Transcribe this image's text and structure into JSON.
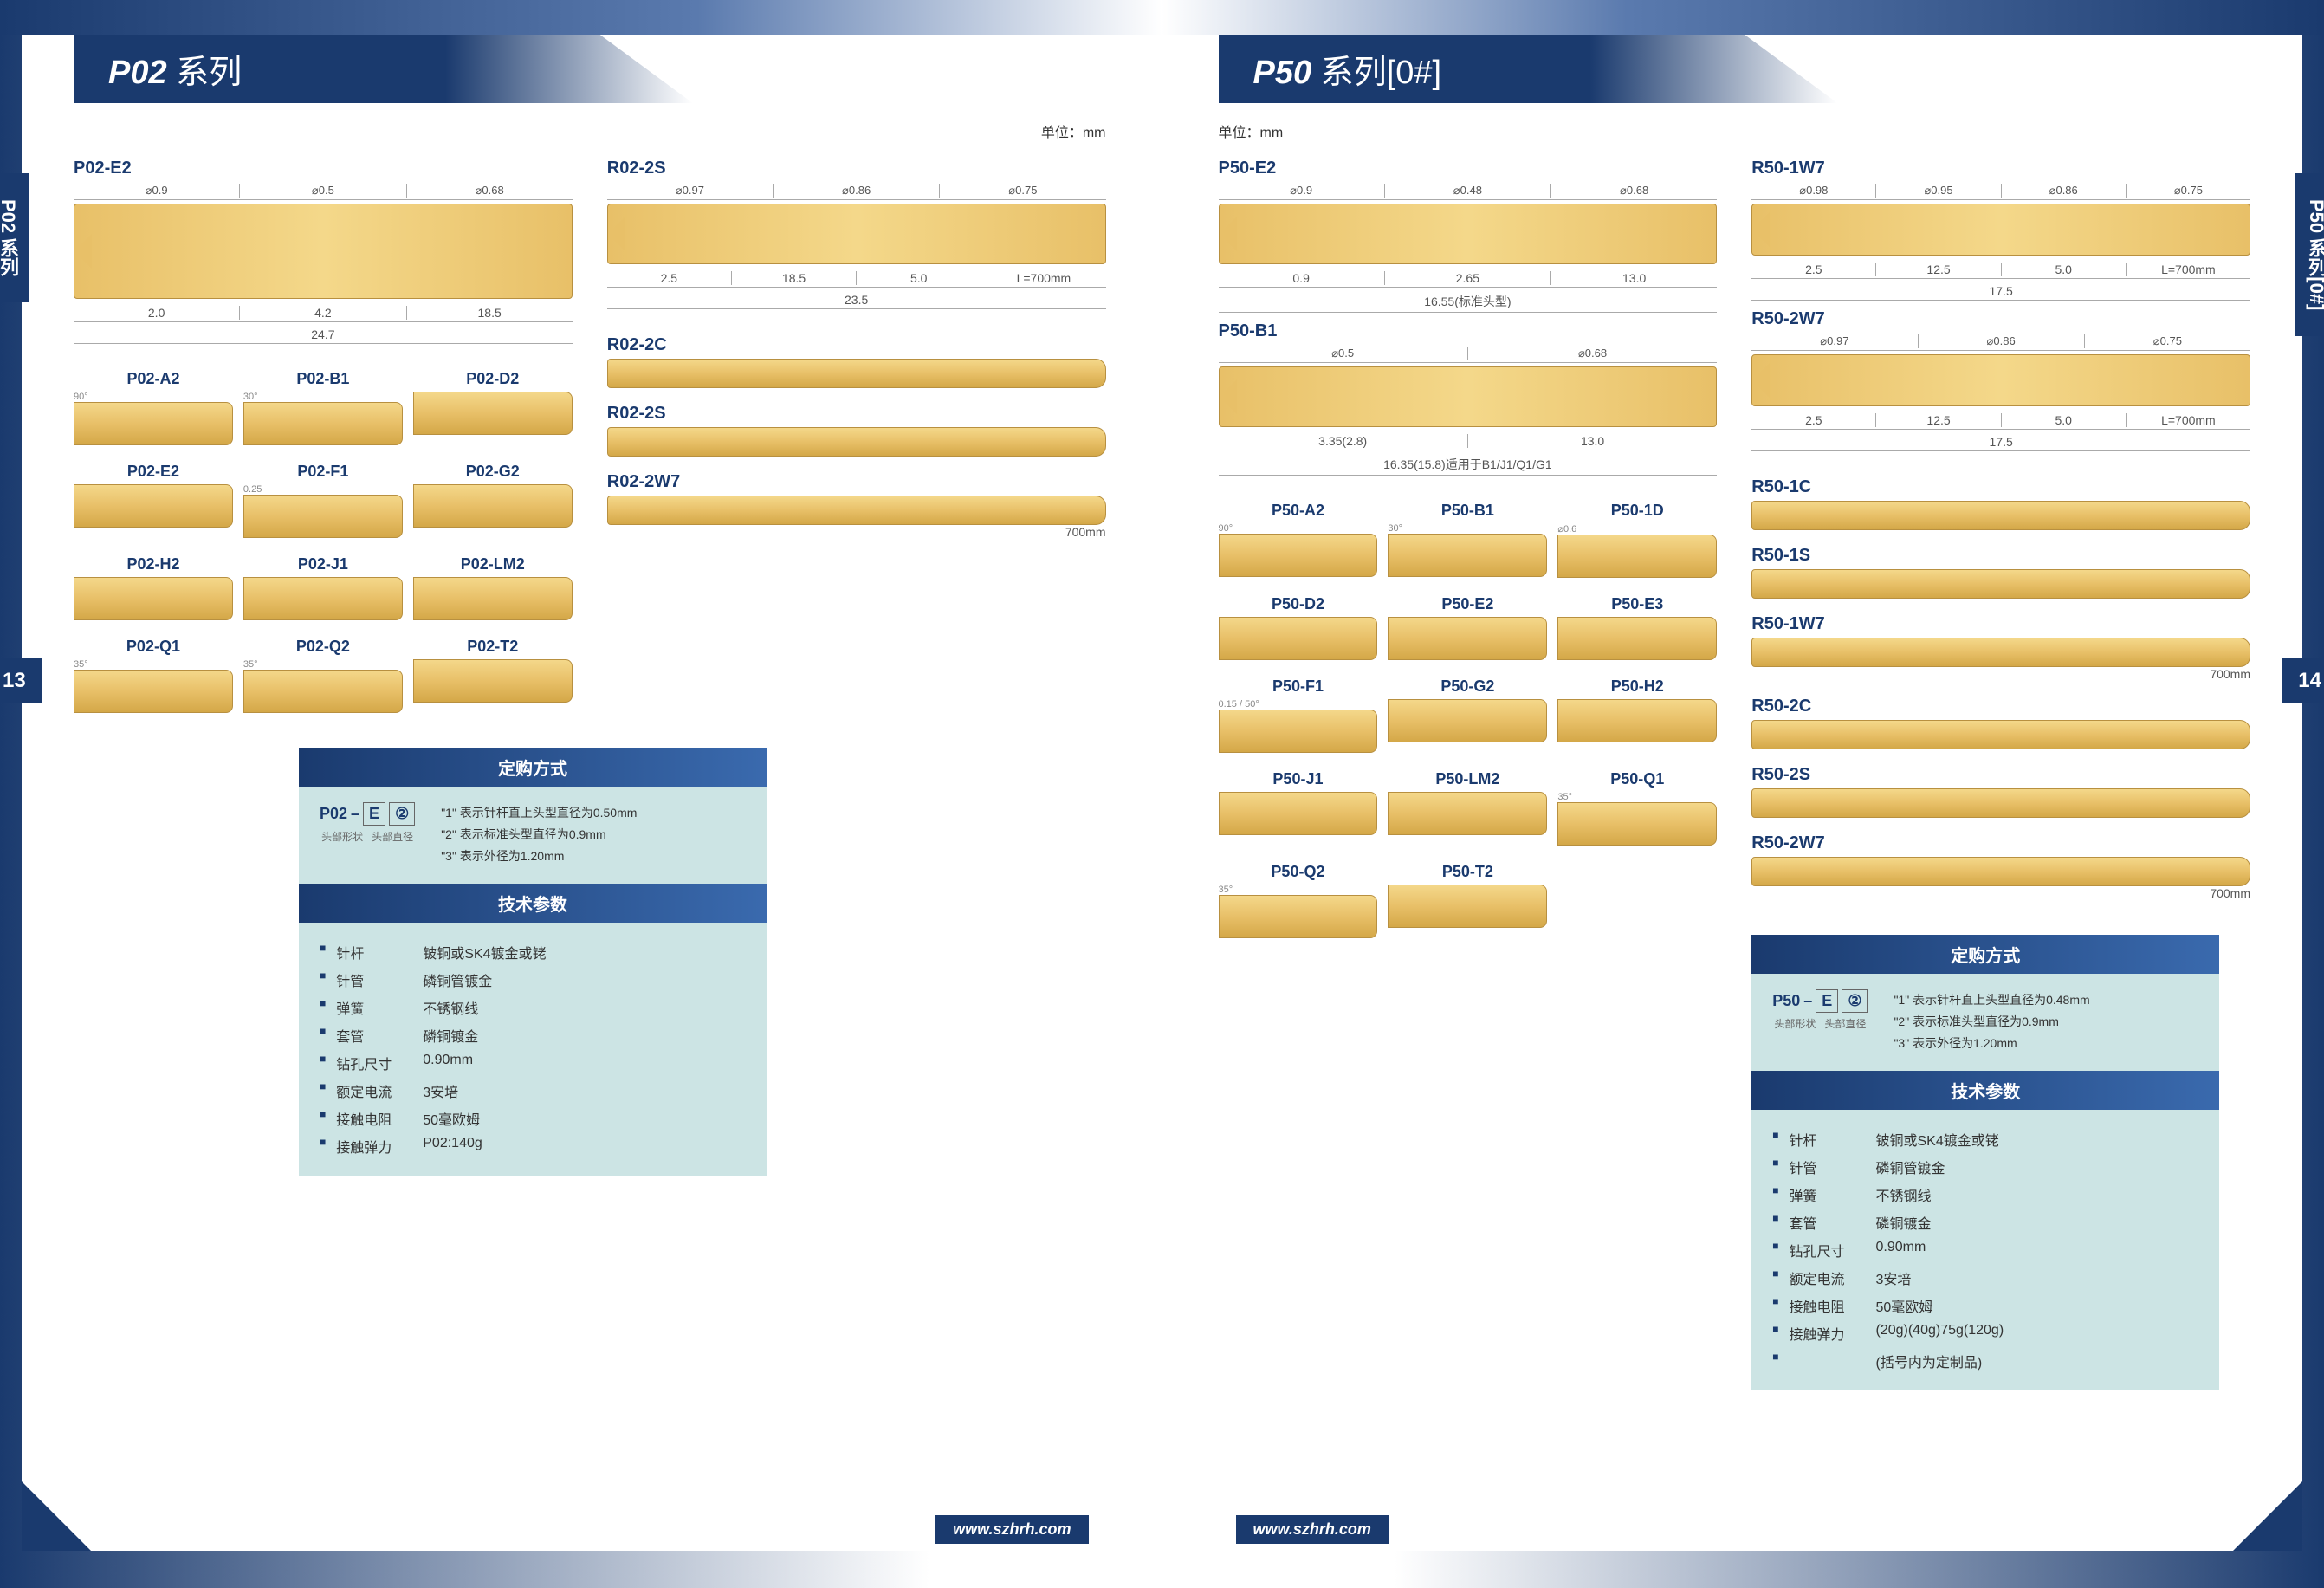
{
  "footer_url": "www.szhrh.com",
  "unit_text": "单位：mm",
  "left": {
    "series_title_main": "P02",
    "series_title_sub": "系列",
    "tab_label": "P02 系列",
    "page_number": "13",
    "main_probe": {
      "label": "P02-E2",
      "diameters": [
        "⌀0.9",
        "⌀0.5",
        "⌀0.68"
      ],
      "lengths": [
        "2.0",
        "4.2",
        "18.5"
      ],
      "total": "24.7"
    },
    "receptacle_main": {
      "label": "R02-2S",
      "diameters": [
        "⌀0.97",
        "⌀0.86",
        "⌀0.75"
      ],
      "lengths": [
        "2.5",
        "18.5",
        "5.0"
      ],
      "total": "23.5",
      "tail": "L=700mm"
    },
    "tips": [
      "P02-A2",
      "P02-B1",
      "P02-D2",
      "P02-E2",
      "P02-F1",
      "P02-G2",
      "P02-H2",
      "P02-J1",
      "P02-LM2",
      "P02-Q1",
      "P02-Q2",
      "P02-T2"
    ],
    "tip_angles": {
      "P02-A2": "90°",
      "P02-B1": "30°",
      "P02-F1": "0.25",
      "P02-Q1": "35°",
      "P02-Q2": "35°"
    },
    "receptacles": [
      {
        "label": "R02-2C",
        "tail": ""
      },
      {
        "label": "R02-2S",
        "tail": ""
      },
      {
        "label": "R02-2W7",
        "tail": "700mm"
      }
    ],
    "order": {
      "title": "定购方式",
      "prefix": "P02",
      "box1": "E",
      "box2": "②",
      "sub1": "头部形状",
      "sub2": "头部直径",
      "notes": [
        "\"1\" 表示针杆直上头型直径为0.50mm",
        "\"2\" 表示标准头型直径为0.9mm",
        "\"3\" 表示外径为1.20mm"
      ]
    },
    "specs": {
      "title": "技术参数",
      "rows": [
        {
          "k": "针杆",
          "v": "铍铜或SK4镀金或铑"
        },
        {
          "k": "针管",
          "v": "磷铜管镀金"
        },
        {
          "k": "弹簧",
          "v": "不锈钢线"
        },
        {
          "k": "套管",
          "v": "磷铜镀金"
        },
        {
          "k": "钻孔尺寸",
          "v": "0.90mm"
        },
        {
          "k": "额定电流",
          "v": "3安培"
        },
        {
          "k": "接触电阻",
          "v": "50毫欧姆"
        },
        {
          "k": "接触弹力",
          "v": "P02:140g"
        }
      ]
    }
  },
  "right": {
    "series_title_main": "P50",
    "series_title_sub": "系列[0#]",
    "tab_label": "P50 系列[0#]",
    "page_number": "14",
    "main_probe1": {
      "label": "P50-E2",
      "diameters": [
        "⌀0.9",
        "⌀0.48",
        "⌀0.68"
      ],
      "lengths": [
        "0.9",
        "2.65",
        "13.0"
      ],
      "total": "16.55(标准头型)"
    },
    "main_probe2": {
      "label": "P50-B1",
      "diameters": [
        "⌀0.5",
        "⌀0.68"
      ],
      "lengths": [
        "3.35(2.8)",
        "13.0"
      ],
      "total": "16.35(15.8)适用于B1/J1/Q1/G1"
    },
    "receptacle_main1": {
      "label": "R50-1W7",
      "diameters": [
        "⌀0.98",
        "⌀0.95",
        "⌀0.86",
        "⌀0.75"
      ],
      "lengths": [
        "2.5",
        "12.5",
        "5.0"
      ],
      "total": "17.5",
      "tail": "L=700mm"
    },
    "receptacle_main2": {
      "label": "R50-2W7",
      "diameters": [
        "⌀0.97",
        "⌀0.86",
        "⌀0.75"
      ],
      "lengths": [
        "2.5",
        "12.5",
        "5.0"
      ],
      "total": "17.5",
      "tail": "L=700mm"
    },
    "tips": [
      "P50-A2",
      "P50-B1",
      "P50-1D",
      "P50-D2",
      "P50-E2",
      "P50-E3",
      "P50-F1",
      "P50-G2",
      "P50-H2",
      "P50-J1",
      "P50-LM2",
      "P50-Q1",
      "P50-Q2",
      "P50-T2"
    ],
    "tip_angles": {
      "P50-A2": "90°",
      "P50-B1": "30°",
      "P50-1D": "⌀0.6",
      "P50-F1": "0.15 / 50°",
      "P50-Q1": "35°",
      "P50-Q2": "35°"
    },
    "receptacles": [
      {
        "label": "R50-1C",
        "tail": ""
      },
      {
        "label": "R50-1S",
        "tail": ""
      },
      {
        "label": "R50-1W7",
        "tail": "700mm"
      },
      {
        "label": "R50-2C",
        "tail": ""
      },
      {
        "label": "R50-2S",
        "tail": ""
      },
      {
        "label": "R50-2W7",
        "tail": "700mm"
      }
    ],
    "order": {
      "title": "定购方式",
      "prefix": "P50",
      "box1": "E",
      "box2": "②",
      "sub1": "头部形状",
      "sub2": "头部直径",
      "notes": [
        "\"1\" 表示针杆直上头型直径为0.48mm",
        "\"2\" 表示标准头型直径为0.9mm",
        "\"3\" 表示外径为1.20mm"
      ]
    },
    "specs": {
      "title": "技术参数",
      "rows": [
        {
          "k": "针杆",
          "v": "铍铜或SK4镀金或铑"
        },
        {
          "k": "针管",
          "v": "磷铜管镀金"
        },
        {
          "k": "弹簧",
          "v": "不锈钢线"
        },
        {
          "k": "套管",
          "v": "磷铜镀金"
        },
        {
          "k": "钻孔尺寸",
          "v": "0.90mm"
        },
        {
          "k": "额定电流",
          "v": "3安培"
        },
        {
          "k": "接触电阻",
          "v": "50毫欧姆"
        },
        {
          "k": "接触弹力",
          "v": "(20g)(40g)75g(120g)"
        },
        {
          "k": "",
          "v": "(括号内为定制品)"
        }
      ]
    }
  }
}
